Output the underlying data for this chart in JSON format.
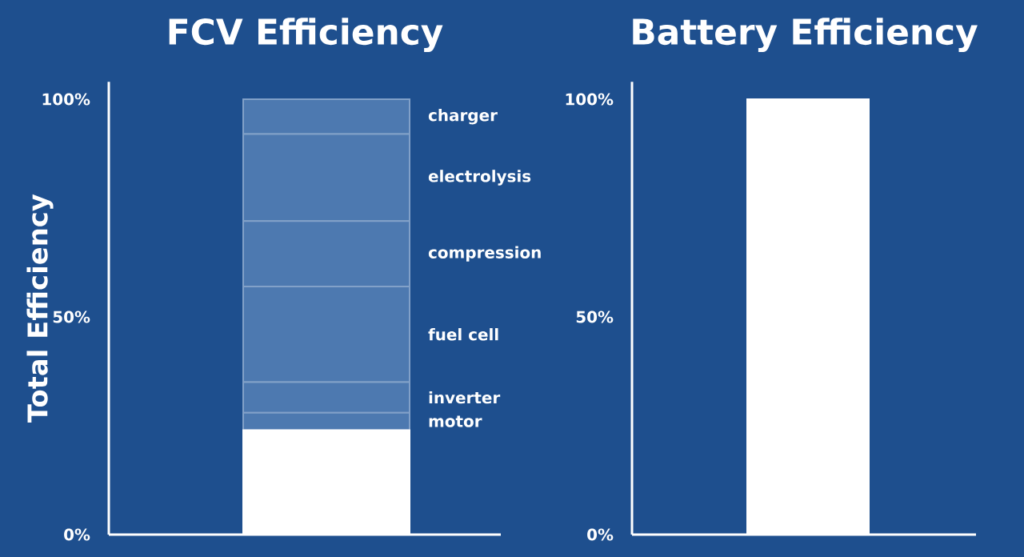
{
  "chart_data": [
    {
      "type": "bar",
      "stacked": true,
      "title": "FCV Efficiency",
      "ylabel": "Total Efficiency",
      "categories": [
        null
      ],
      "ylim": [
        0,
        104
      ],
      "yticks": [
        {
          "value": 0,
          "label": "0%"
        },
        {
          "value": 50,
          "label": "50%"
        },
        {
          "value": 100,
          "label": "100%"
        }
      ],
      "series": [
        {
          "color": "#ffffff",
          "values": [
            24
          ]
        },
        {
          "name": "motor",
          "color": "#4d79b0",
          "values": [
            4
          ]
        },
        {
          "name": "inverter",
          "color": "#4d79b0",
          "values": [
            7
          ]
        },
        {
          "name": "fuel cell",
          "color": "#4d79b0",
          "values": [
            22
          ]
        },
        {
          "name": "compression",
          "color": "#4d79b0",
          "values": [
            15
          ]
        },
        {
          "name": "electrolysis",
          "color": "#4d79b0",
          "values": [
            20
          ]
        },
        {
          "name": "charger",
          "color": "#4d79b0",
          "values": [
            8
          ]
        }
      ]
    },
    {
      "type": "bar",
      "title": "Battery Efficiency",
      "categories": [
        null
      ],
      "ylim": [
        0,
        104
      ],
      "yticks": [
        {
          "value": 0,
          "label": "0%"
        },
        {
          "value": 50,
          "label": "50%"
        },
        {
          "value": 100,
          "label": "100%"
        }
      ],
      "series": [
        {
          "color": "#ffffff",
          "values": [
            100
          ]
        }
      ]
    }
  ]
}
